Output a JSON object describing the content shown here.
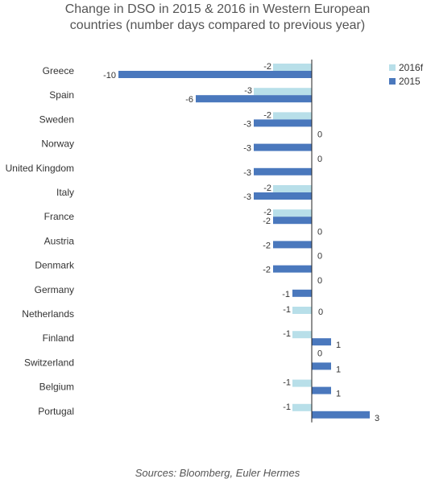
{
  "chart_data": {
    "type": "bar",
    "orientation": "horizontal",
    "title_lines": [
      "Change in DSO in 2015 & 2016 in Western European",
      "countries (number days compared to previous year)"
    ],
    "categories": [
      "Greece",
      "Spain",
      "Sweden",
      "Norway",
      "United Kingdom",
      "Italy",
      "France",
      "Austria",
      "Denmark",
      "Germany",
      "Netherlands",
      "Finland",
      "Switzerland",
      "Belgium",
      "Portugal"
    ],
    "series": [
      {
        "name": "2016f",
        "color": "#b8dfe9",
        "values": [
          -2,
          -3,
          -2,
          0,
          0,
          -2,
          -2,
          0,
          0,
          0,
          -1,
          -1,
          0,
          -1,
          -1
        ]
      },
      {
        "name": "2015",
        "color": "#4a78bd",
        "values": [
          -10,
          -6,
          -3,
          -3,
          -3,
          -3,
          -2,
          -2,
          -2,
          -1,
          0,
          1,
          1,
          1,
          3
        ]
      }
    ],
    "xlim": [
      -10,
      3
    ],
    "legend_position": "top-right",
    "grid": false,
    "data_labels": true
  },
  "source_note": "Sources: Bloomberg, Euler Hermes"
}
